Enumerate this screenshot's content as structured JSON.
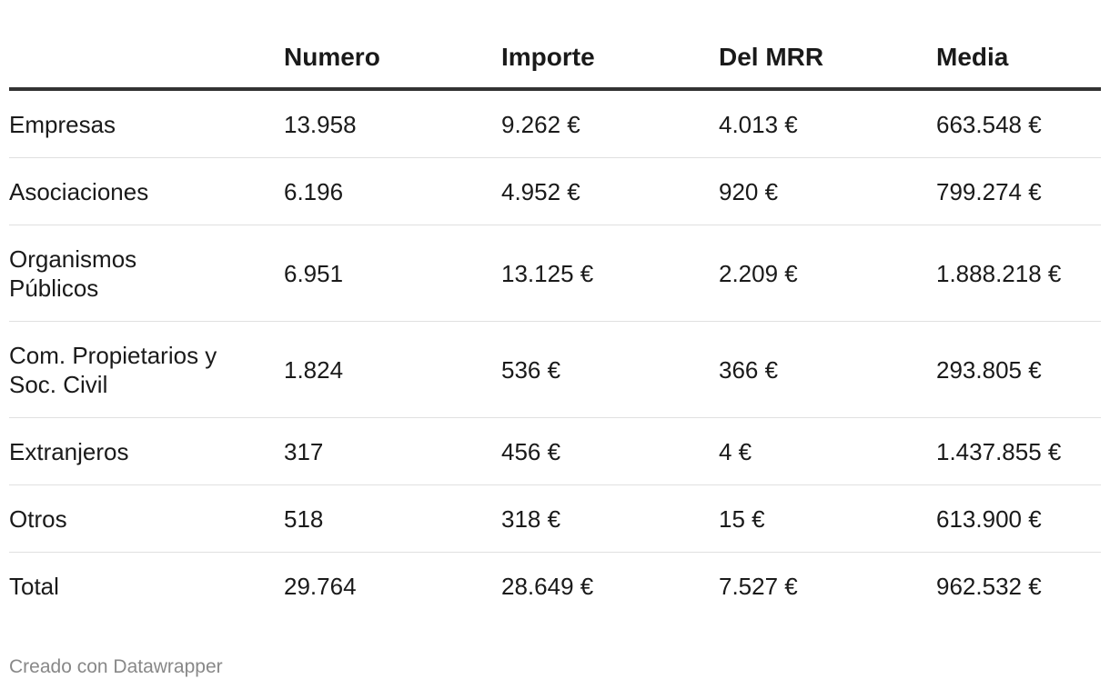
{
  "chart_data": {
    "type": "table",
    "columns": [
      "",
      "Numero",
      "Importe",
      "Del MRR",
      "Media"
    ],
    "rows": [
      [
        "Empresas",
        "13.958",
        "9.262 €",
        "4.013 €",
        "663.548 €"
      ],
      [
        "Asociaciones",
        "6.196",
        "4.952 €",
        "920 €",
        "799.274 €"
      ],
      [
        "Organismos Públicos",
        "6.951",
        "13.125 €",
        "2.209 €",
        "1.888.218 €"
      ],
      [
        "Com. Propietarios y Soc. Civil",
        "1.824",
        "536 €",
        "366 €",
        "293.805 €"
      ],
      [
        "Extranjeros",
        "317",
        "456 €",
        "4 €",
        "1.437.855 €"
      ],
      [
        "Otros",
        "518",
        "318 €",
        "15 €",
        "613.900 €"
      ],
      [
        "Total",
        "29.764",
        "28.649 €",
        "7.527 €",
        "962.532 €"
      ]
    ]
  },
  "footer": {
    "credit": "Creado con Datawrapper"
  },
  "colors": {
    "text": "#1a1a1a",
    "header_rule": "#333333",
    "row_rule": "#e0e0e0",
    "credit": "#888888"
  }
}
